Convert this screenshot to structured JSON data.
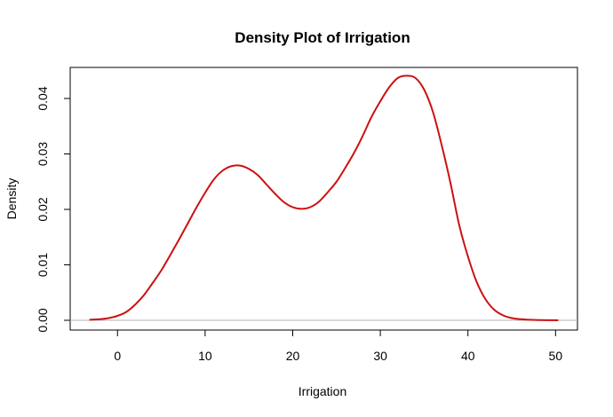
{
  "chart_data": {
    "type": "line",
    "title": "Density Plot of Irrigation",
    "xlabel": "Irrigation",
    "ylabel": "Density",
    "xlim": [
      -5.4,
      52.5
    ],
    "ylim": [
      -0.00176,
      0.0456
    ],
    "x_ticks": [
      0,
      10,
      20,
      30,
      40,
      50
    ],
    "y_ticks": [
      0.0,
      0.01,
      0.02,
      0.03,
      0.04
    ],
    "x_tick_labels": [
      "0",
      "10",
      "20",
      "30",
      "40",
      "50"
    ],
    "y_tick_labels": [
      "0.00",
      "0.01",
      "0.02",
      "0.03",
      "0.04"
    ],
    "grid": false,
    "baseline": 0,
    "series": [
      {
        "color": "#cc1111",
        "x": [
          -3.2,
          -2,
          -1,
          0,
          1,
          2,
          3,
          4,
          5,
          6,
          7,
          8,
          9,
          10,
          11,
          12,
          13,
          14,
          15,
          16,
          17,
          18,
          19,
          20,
          21,
          22,
          23,
          24,
          25,
          26,
          27,
          28,
          29,
          30,
          31,
          32,
          33,
          34,
          35,
          36,
          37,
          38,
          39,
          40,
          41,
          42,
          43,
          44,
          45,
          46,
          47,
          48,
          49,
          50.3
        ],
        "y": [
          0.0001,
          0.0002,
          0.0004,
          0.0008,
          0.0015,
          0.0028,
          0.0045,
          0.0067,
          0.009,
          0.0117,
          0.0145,
          0.0174,
          0.0203,
          0.023,
          0.0254,
          0.027,
          0.0278,
          0.0279,
          0.0273,
          0.0262,
          0.0245,
          0.0228,
          0.0213,
          0.0204,
          0.0201,
          0.0204,
          0.0214,
          0.0231,
          0.025,
          0.0275,
          0.0302,
          0.0333,
          0.0367,
          0.0395,
          0.042,
          0.0437,
          0.0441,
          0.0437,
          0.0416,
          0.0376,
          0.0316,
          0.0248,
          0.0172,
          0.0115,
          0.0069,
          0.0038,
          0.0019,
          0.0009,
          0.0004,
          0.0002,
          0.0001,
          5e-05,
          2e-05,
          1e-05
        ]
      }
    ]
  }
}
